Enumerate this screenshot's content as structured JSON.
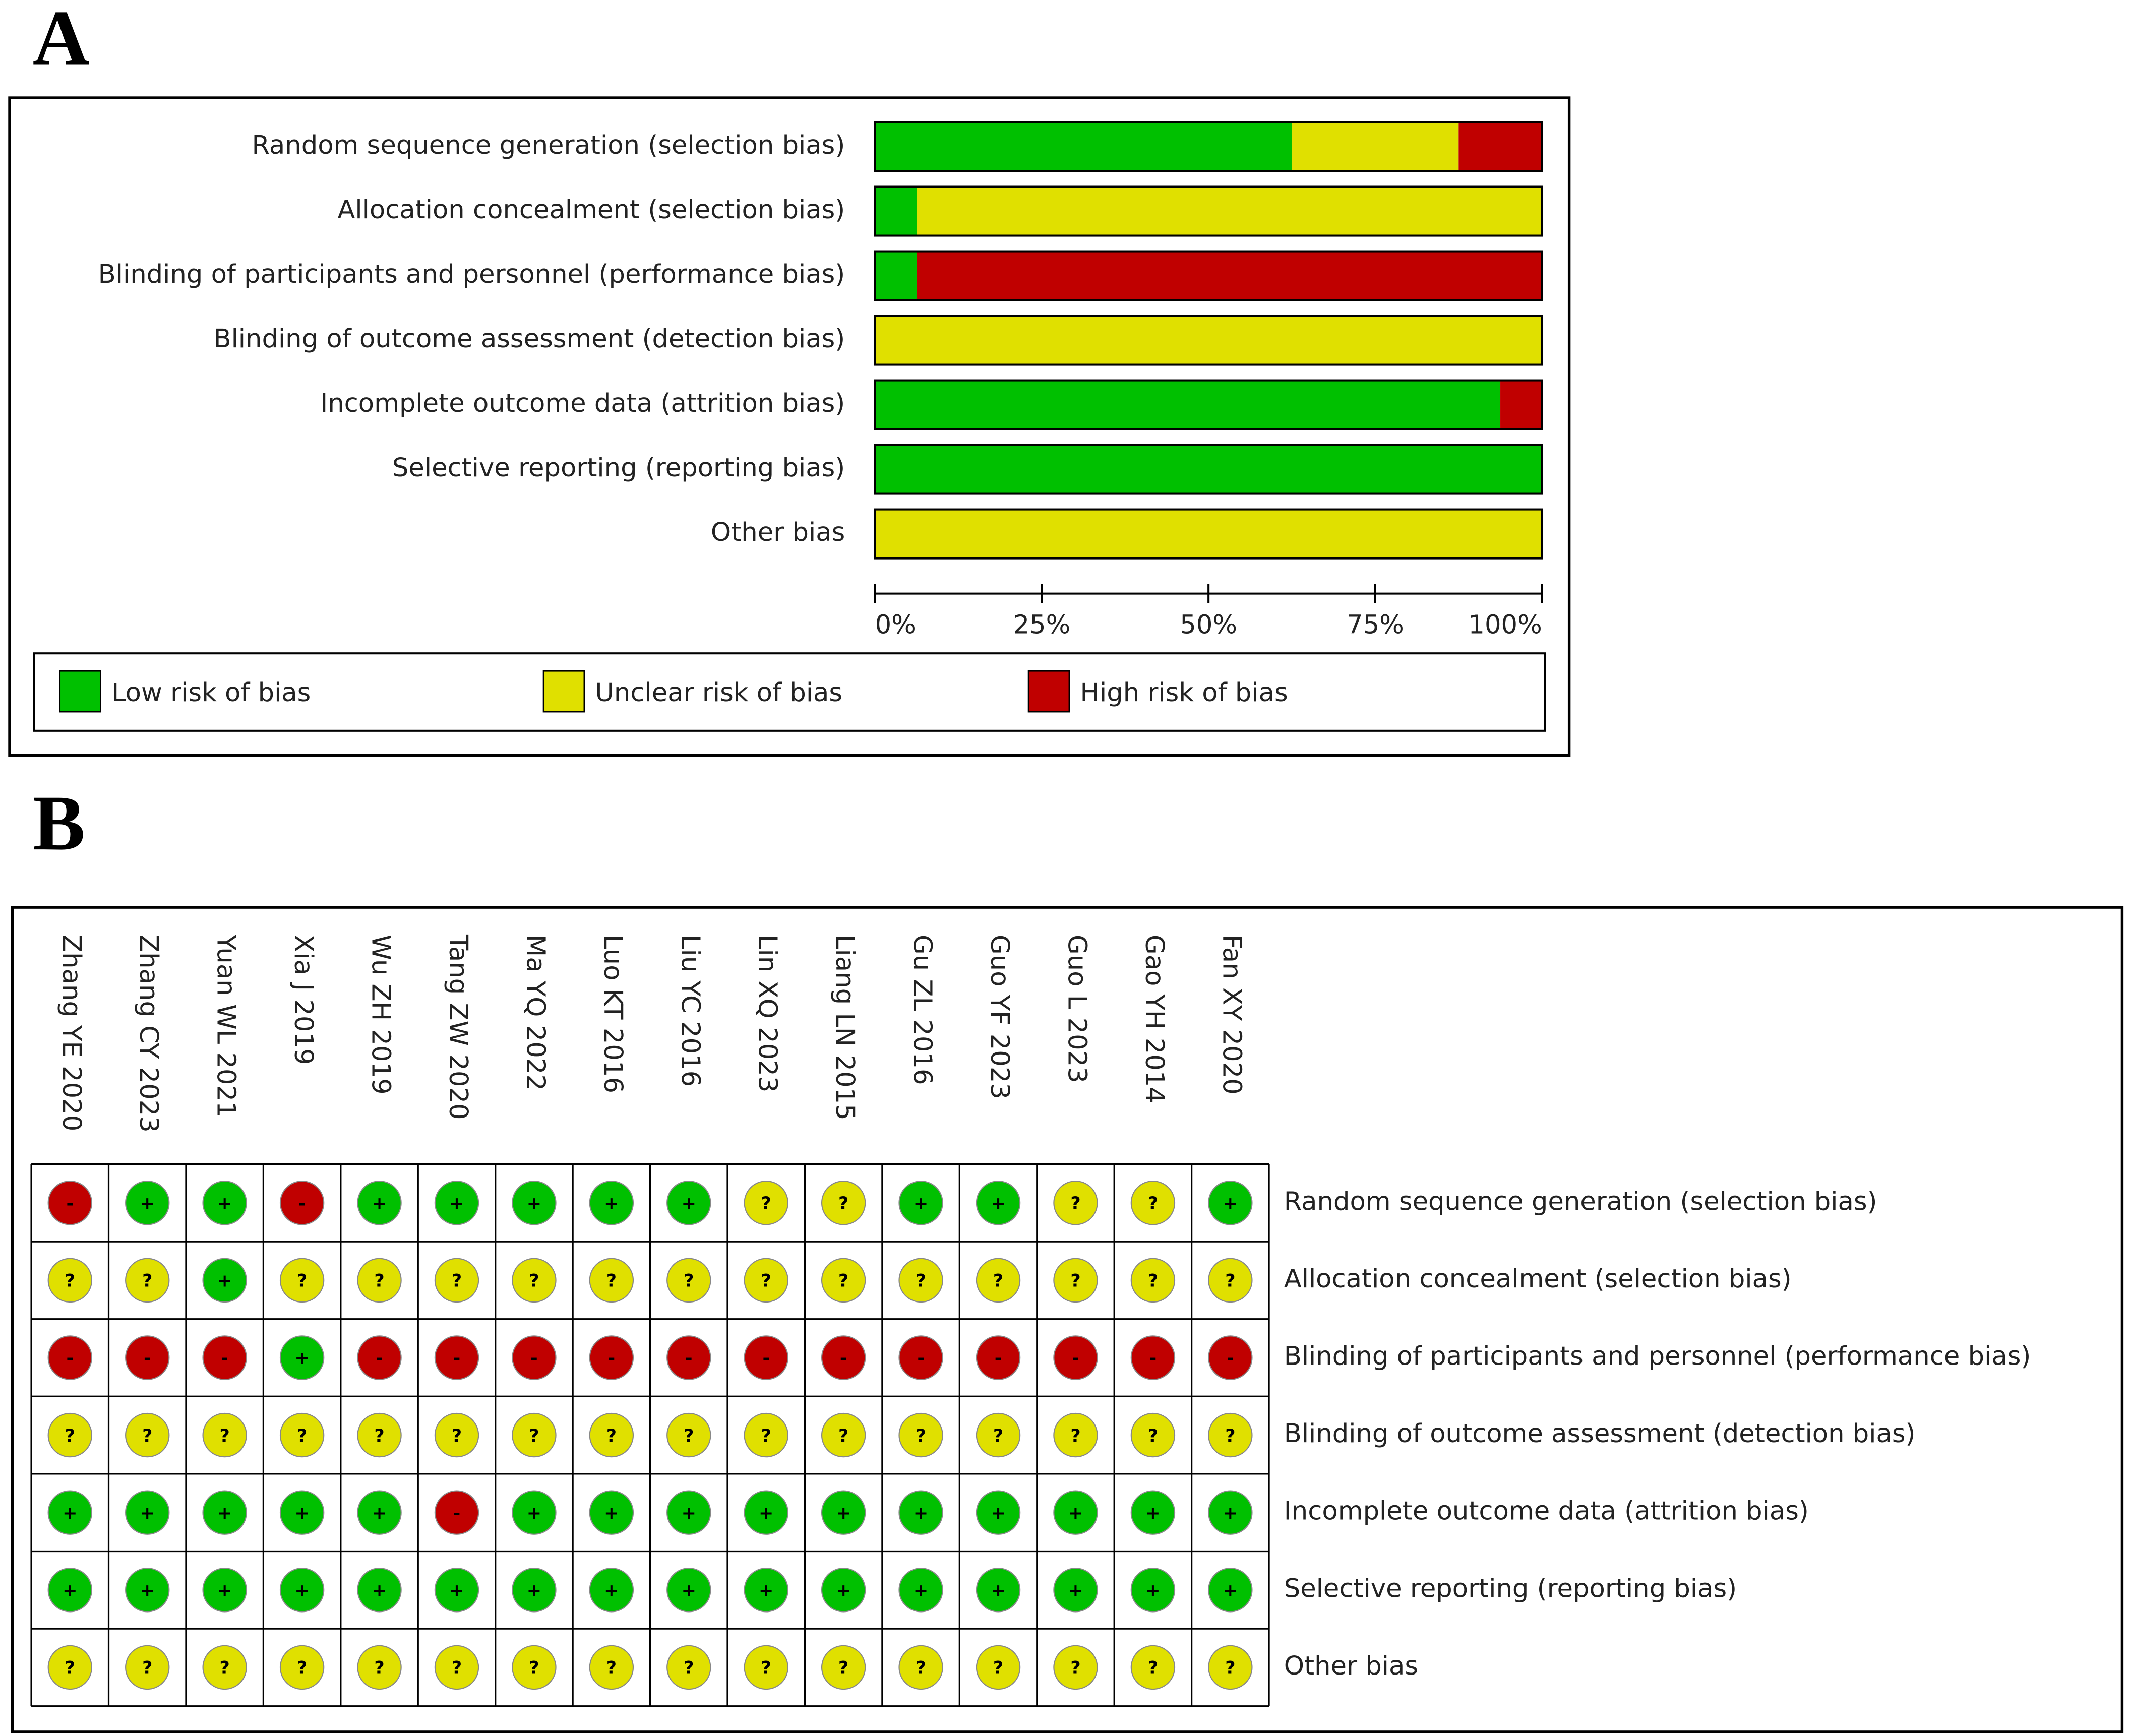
{
  "chart_data": [
    {
      "type": "bar",
      "label": "A",
      "orientation": "horizontal",
      "stacked": true,
      "legend": "bottom",
      "categories": [
        "Random sequence generation (selection bias)",
        "Allocation concealment (selection bias)",
        "Blinding of participants and personnel (performance bias)",
        "Blinding of outcome assessment (detection bias)",
        "Incomplete outcome data (attrition bias)",
        "Selective reporting (reporting bias)",
        "Other bias"
      ],
      "series": [
        {
          "name": "Low risk of bias",
          "color": "#00c000",
          "values": [
            62.5,
            6.25,
            6.25,
            0,
            93.75,
            100,
            0
          ]
        },
        {
          "name": "Unclear risk of bias",
          "color": "#e0e000",
          "values": [
            25,
            93.75,
            0,
            100,
            0,
            0,
            100
          ]
        },
        {
          "name": "High risk of bias",
          "color": "#c00000",
          "values": [
            12.5,
            0,
            93.75,
            0,
            6.25,
            0,
            0
          ]
        }
      ],
      "xlim": [
        0,
        100
      ],
      "xticks": [
        {
          "value": 0,
          "label": "0%"
        },
        {
          "value": 25,
          "label": "25%"
        },
        {
          "value": 50,
          "label": "50%"
        },
        {
          "value": 75,
          "label": "75%"
        },
        {
          "value": 100,
          "label": "100%"
        }
      ]
    },
    {
      "type": "traffic-light",
      "label": "B",
      "studies": [
        "Zhang YE 2020",
        "Zhang CY 2023",
        "Yuan WL 2021",
        "Xia J 2019",
        "Wu ZH 2019",
        "Tang ZW 2020",
        "Ma YQ 2022",
        "Luo KT 2016",
        "Liu YC 2016",
        "Lin XQ 2023",
        "Liang LN 2015",
        "Gu ZL 2016",
        "Guo YF 2023",
        "Guo L 2023",
        "Gao YH 2014",
        "Fan XY 2020"
      ],
      "domains": [
        "Random sequence generation (selection bias)",
        "Allocation concealment (selection bias)",
        "Blinding of participants and personnel (performance bias)",
        "Blinding of outcome assessment (detection bias)",
        "Incomplete outcome data (attrition bias)",
        "Selective reporting (reporting bias)",
        "Other bias"
      ],
      "judgment_colors": {
        "+": "#00c000",
        "?": "#e0e000",
        "-": "#c00000"
      },
      "judgments": [
        [
          "-",
          "+",
          "+",
          "-",
          "+",
          "+",
          "+",
          "+",
          "+",
          "?",
          "?",
          "+",
          "+",
          "?",
          "?",
          "+"
        ],
        [
          "?",
          "?",
          "+",
          "?",
          "?",
          "?",
          "?",
          "?",
          "?",
          "?",
          "?",
          "?",
          "?",
          "?",
          "?",
          "?"
        ],
        [
          "-",
          "-",
          "-",
          "+",
          "-",
          "-",
          "-",
          "-",
          "-",
          "-",
          "-",
          "-",
          "-",
          "-",
          "-",
          "-"
        ],
        [
          "?",
          "?",
          "?",
          "?",
          "?",
          "?",
          "?",
          "?",
          "?",
          "?",
          "?",
          "?",
          "?",
          "?",
          "?",
          "?"
        ],
        [
          "+",
          "+",
          "+",
          "+",
          "+",
          "-",
          "+",
          "+",
          "+",
          "+",
          "+",
          "+",
          "+",
          "+",
          "+",
          "+"
        ],
        [
          "+",
          "+",
          "+",
          "+",
          "+",
          "+",
          "+",
          "+",
          "+",
          "+",
          "+",
          "+",
          "+",
          "+",
          "+",
          "+"
        ],
        [
          "?",
          "?",
          "?",
          "?",
          "?",
          "?",
          "?",
          "?",
          "?",
          "?",
          "?",
          "?",
          "?",
          "?",
          "?",
          "?"
        ]
      ]
    }
  ]
}
